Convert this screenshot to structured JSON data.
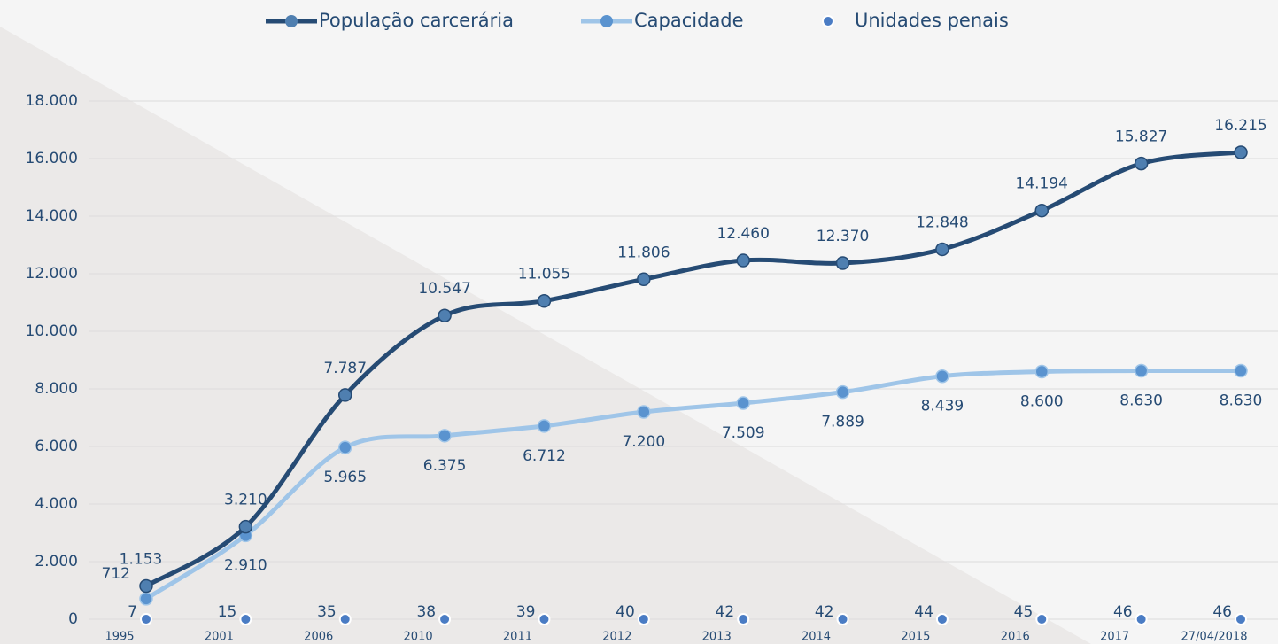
{
  "chart_data": {
    "type": "line",
    "categories": [
      "1995",
      "2001",
      "2006",
      "2010",
      "2011",
      "2012",
      "2013",
      "2014",
      "2015",
      "2016",
      "2017",
      "27/04/2018"
    ],
    "series": [
      {
        "name": "População carcerária",
        "color": "#264b74",
        "values": [
          1153,
          3210,
          7787,
          10547,
          11055,
          11806,
          12460,
          12370,
          12848,
          14194,
          15827,
          16215
        ],
        "value_labels": [
          "1.153",
          "3.210",
          "7.787",
          "10.547",
          "11.055",
          "11.806",
          "12.460",
          "12.370",
          "12.848",
          "14.194",
          "15.827",
          "16.215"
        ]
      },
      {
        "name": "Capacidade",
        "color": "#9fc5e8",
        "values": [
          712,
          2910,
          5965,
          6375,
          6712,
          7200,
          7509,
          7889,
          8439,
          8600,
          8630,
          8630
        ],
        "value_labels": [
          "712",
          "2.910",
          "5.965",
          "6.375",
          "6.712",
          "7.200",
          "7.509",
          "7.889",
          "8.439",
          "8.600",
          "8.630",
          "8.630"
        ]
      },
      {
        "name": "Unidades penais",
        "color": "#4a7cc4",
        "values": [
          7,
          15,
          35,
          38,
          39,
          40,
          42,
          42,
          44,
          45,
          46,
          46
        ]
      }
    ],
    "ylim": [
      0,
      18000
    ],
    "yticks": [
      0,
      {
        "value": 2000,
        "label": "2.000"
      },
      {
        "value": 4000,
        "label": "4.000"
      },
      {
        "value": 6000,
        "label": "6.000"
      },
      {
        "value": 8000,
        "label": "8.000"
      },
      {
        "value": 10000,
        "label": "10.000"
      },
      {
        "value": 12000,
        "label": "12.000"
      },
      {
        "value": 14000,
        "label": "14.000"
      },
      {
        "value": 16000,
        "label": "16.000"
      },
      {
        "value": 18000,
        "label": "18.000"
      }
    ],
    "grid": true
  }
}
